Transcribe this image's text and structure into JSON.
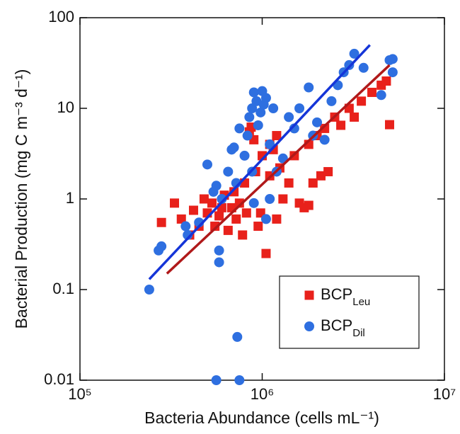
{
  "chart_data": {
    "type": "scatter",
    "x_label": "Bacteria Abundance (cells mL⁻¹)",
    "y_label": "Bacterial Production (mg C m⁻³ d⁻¹)",
    "log_x": true,
    "log_y": true,
    "xlim": [
      100000,
      10000000
    ],
    "xticks": [
      {
        "value": 100000,
        "label": "10⁵"
      },
      {
        "value": 1000000,
        "label": "10⁶"
      },
      {
        "value": 10000000,
        "label": "10⁷"
      }
    ],
    "ylim": [
      0.01,
      100
    ],
    "yticks": [
      0.01,
      0.1,
      1,
      10,
      100
    ],
    "legend": "lower right",
    "series": [
      {
        "name": "BCP",
        "subscript": "Leu",
        "color": "#e8211b",
        "line_color": "#b0191a",
        "marker": "square",
        "x": [
          280000,
          330000,
          360000,
          400000,
          420000,
          450000,
          480000,
          500000,
          530000,
          550000,
          580000,
          600000,
          620000,
          650000,
          680000,
          700000,
          720000,
          750000,
          780000,
          800000,
          820000,
          850000,
          870000,
          900000,
          920000,
          950000,
          1000000,
          1050000,
          1100000,
          1150000,
          1200000,
          1250000,
          1300000,
          1400000,
          1500000,
          1600000,
          1700000,
          1800000,
          1900000,
          2000000,
          2100000,
          2200000,
          2300000,
          2500000,
          2700000,
          3000000,
          3200000,
          3500000,
          4000000,
          4500000,
          4800000,
          5000000,
          1800000,
          1200000,
          1100000,
          980000
        ],
        "values": [
          0.55,
          0.9,
          0.6,
          0.4,
          0.75,
          0.5,
          1.0,
          0.7,
          0.9,
          0.5,
          0.65,
          0.8,
          1.1,
          0.45,
          0.8,
          1.2,
          0.6,
          0.9,
          0.4,
          1.5,
          0.7,
          5.5,
          6.2,
          4.5,
          2.0,
          0.5,
          3.0,
          0.25,
          1.8,
          3.5,
          0.6,
          2.2,
          1.0,
          1.5,
          3.0,
          0.9,
          0.8,
          4.0,
          1.5,
          5.0,
          1.8,
          6.0,
          2.0,
          8.0,
          6.5,
          10,
          8.0,
          12,
          15,
          18,
          20,
          6.6,
          0.85,
          5.0,
          4.0,
          0.7
        ],
        "fit_x": [
          300000,
          5000000
        ],
        "fit_y": [
          0.15,
          30
        ]
      },
      {
        "name": "BCP",
        "subscript": "Dil",
        "color": "#2e6fe0",
        "line_color": "#1535d8",
        "marker": "circle",
        "x": [
          240000,
          270000,
          280000,
          380000,
          390000,
          450000,
          500000,
          540000,
          560000,
          580000,
          580000,
          560000,
          730000,
          750000,
          600000,
          650000,
          680000,
          700000,
          720000,
          750000,
          800000,
          830000,
          850000,
          880000,
          900000,
          930000,
          950000,
          980000,
          1000000,
          1020000,
          1050000,
          1100000,
          1100000,
          1150000,
          1200000,
          1300000,
          1400000,
          1500000,
          1600000,
          1800000,
          1900000,
          2000000,
          2200000,
          2400000,
          2600000,
          2800000,
          3000000,
          3200000,
          3600000,
          4500000,
          5000000,
          5200000,
          5200000,
          880000,
          1050000,
          900000
        ],
        "values": [
          0.1,
          0.27,
          0.3,
          0.5,
          0.4,
          0.55,
          2.4,
          1.2,
          1.4,
          0.27,
          0.2,
          0.01,
          0.03,
          0.01,
          1.0,
          2.0,
          3.5,
          3.7,
          1.5,
          6.0,
          3.0,
          5.0,
          8.0,
          10,
          15,
          12,
          6.5,
          9.0,
          15.5,
          11,
          13,
          4.0,
          1.0,
          10,
          2.0,
          2.8,
          8.0,
          6.0,
          10,
          17,
          5.0,
          7.0,
          4.5,
          12,
          18,
          25,
          30,
          40,
          28,
          14,
          34,
          35,
          25,
          2.0,
          0.6,
          0.9
        ],
        "fit_x": [
          240000,
          3900000
        ],
        "fit_y": [
          0.13,
          50
        ]
      }
    ]
  }
}
